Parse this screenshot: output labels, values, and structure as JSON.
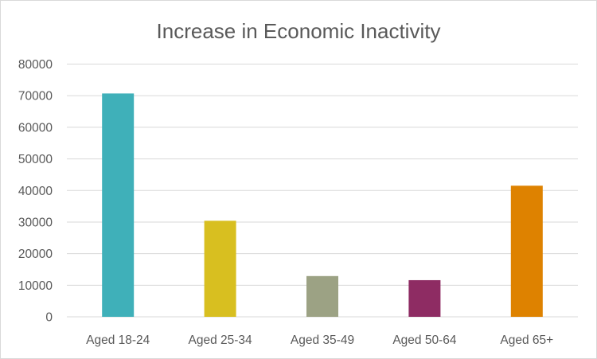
{
  "chart_data": {
    "type": "bar",
    "title": "Increase in Economic Inactivity",
    "xlabel": "",
    "ylabel": "",
    "categories": [
      "Aged 18-24",
      "Aged 25-34",
      "Aged 35-49",
      "Aged 50-64",
      "Aged 65+"
    ],
    "values": [
      70700,
      30400,
      12900,
      11600,
      41500
    ],
    "colors": [
      "#3fb0b9",
      "#d8bf20",
      "#9ca284",
      "#8e2c63",
      "#de8200"
    ],
    "ylim": [
      0,
      80000
    ],
    "yticks": [
      "0",
      "10000",
      "20000",
      "30000",
      "40000",
      "50000",
      "60000",
      "70000",
      "80000"
    ],
    "grid": true,
    "legend": "none"
  }
}
